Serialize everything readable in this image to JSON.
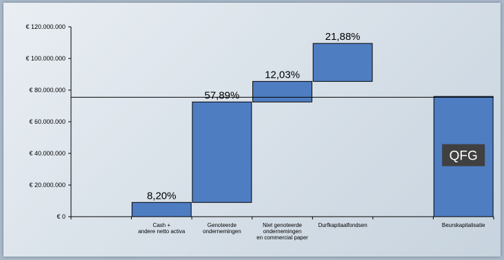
{
  "chart_data": {
    "type": "bar",
    "subtype": "waterfall",
    "categories": [
      "",
      [
        "Cash +",
        "andere netto activa"
      ],
      [
        "Genoteerde",
        "ondernemingen"
      ],
      [
        "Niet genoteerde",
        "ondernemingen",
        "en commercial paper"
      ],
      [
        "Durfkapitaalfondsen"
      ],
      "",
      [
        "Beurskapitalisatie"
      ]
    ],
    "bars": [
      {
        "category_index": 1,
        "start": 0,
        "end": 9000000,
        "label": "8,20%"
      },
      {
        "category_index": 2,
        "start": 9000000,
        "end": 72500000,
        "label": "57,89%"
      },
      {
        "category_index": 3,
        "start": 72500000,
        "end": 85500000,
        "label": "12,03%"
      },
      {
        "category_index": 4,
        "start": 85500000,
        "end": 109500000,
        "label": "21,88%"
      },
      {
        "category_index": 6,
        "start": 0,
        "end": 76000000,
        "label": "QFG",
        "label_inside": true
      }
    ],
    "reference_line": 75500000,
    "ylim": [
      0,
      120000000
    ],
    "yticks": [
      {
        "value": 0,
        "label": "€ 0"
      },
      {
        "value": 20000000,
        "label": "€ 20.000.000"
      },
      {
        "value": 40000000,
        "label": "€ 40.000.000"
      },
      {
        "value": 60000000,
        "label": "€ 60.000.000"
      },
      {
        "value": 80000000,
        "label": "€ 80.000.000"
      },
      {
        "value": 100000000,
        "label": "€ 100.000.000"
      },
      {
        "value": 120000000,
        "label": "€ 120.000.000"
      }
    ],
    "colors": {
      "bar": "#4f7dc2",
      "bar_inner_label_bg": "#404040",
      "grid": "#000000"
    },
    "grid": false,
    "legend": "none"
  }
}
